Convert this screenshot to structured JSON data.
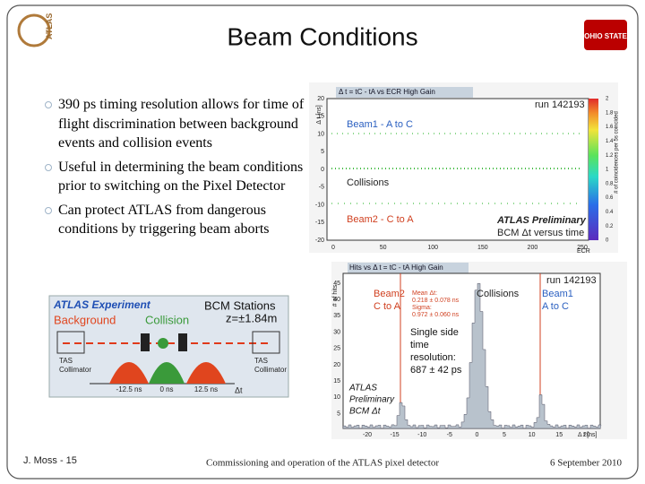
{
  "header": {
    "title": "Beam Conditions"
  },
  "logos": {
    "left": "ATLAS",
    "right": "OHIO STATE"
  },
  "bullets": [
    "390 ps timing resolution allows for time of flight discrimination between background events and collision events",
    "Useful in determining the beam conditions prior to switching on the Pixel Detector",
    "Can protect ATLAS from dangerous conditions by triggering beam aborts"
  ],
  "diagram": {
    "title": "ATLAS Experiment",
    "stations": "BCM Stations",
    "background": "Background",
    "collision": "Collision",
    "z": "z=±1.84m",
    "collimator_left": [
      "TAS",
      "Collimator"
    ],
    "collimator_right": [
      "TAS",
      "Collimator"
    ],
    "times": [
      "-12.5 ns",
      "0 ns",
      "12.5 ns"
    ],
    "axis": "Δt"
  },
  "plot_top": {
    "title": "Δ t = tC - tA vs ECR High Gain",
    "run": "run 142193",
    "beam1": "Beam1 - A to C",
    "collisions": "Collisions",
    "beam2": "Beam2 - C to A",
    "preliminary": "ATLAS Preliminary",
    "subtitle": "BCM Δt versus time",
    "y_label": "Δ t [ns]",
    "x_label": "ECR",
    "z_label": "# of coincidences per 5s coincided",
    "yticks": [
      "20",
      "15",
      "10",
      "5",
      "0",
      "-5",
      "-10",
      "-15",
      "-20"
    ],
    "xticks": [
      "0",
      "50",
      "100",
      "150",
      "200",
      "250"
    ],
    "zticks": [
      "2",
      "1.8",
      "1.6",
      "1.4",
      "1.2",
      "1",
      "0.8",
      "0.6",
      "0.4",
      "0.2",
      "0"
    ]
  },
  "plot_bottom": {
    "title": "Hits vs Δ t = tC - tA High Gain",
    "run": "run 142193",
    "beam2": [
      "Beam2",
      "C to A"
    ],
    "stats": [
      "Mean Δt:",
      "0.218 ± 0.078 ns",
      "Sigma:",
      "0.972 ± 0.060 ns"
    ],
    "collisions": "Collisions",
    "beam1": [
      "Beam1",
      "A to C"
    ],
    "resolution": [
      "Single side",
      "time",
      "resolution:",
      "687 ± 42 ps"
    ],
    "preliminary": [
      "ATLAS",
      "Preliminary",
      "BCM Δt"
    ],
    "y_label": "# of hits",
    "x_label": "Δ t [ns]",
    "yticks": [
      "45",
      "40",
      "35",
      "30",
      "25",
      "20",
      "15",
      "10",
      "5"
    ],
    "xticks": [
      "-20",
      "-15",
      "-10",
      "-5",
      "0",
      "5",
      "10",
      "15",
      "20"
    ]
  },
  "footer": {
    "left": "J. Moss - 15",
    "center": "Commissioning and operation of the ATLAS pixel detector",
    "right": "6 September 2010"
  }
}
